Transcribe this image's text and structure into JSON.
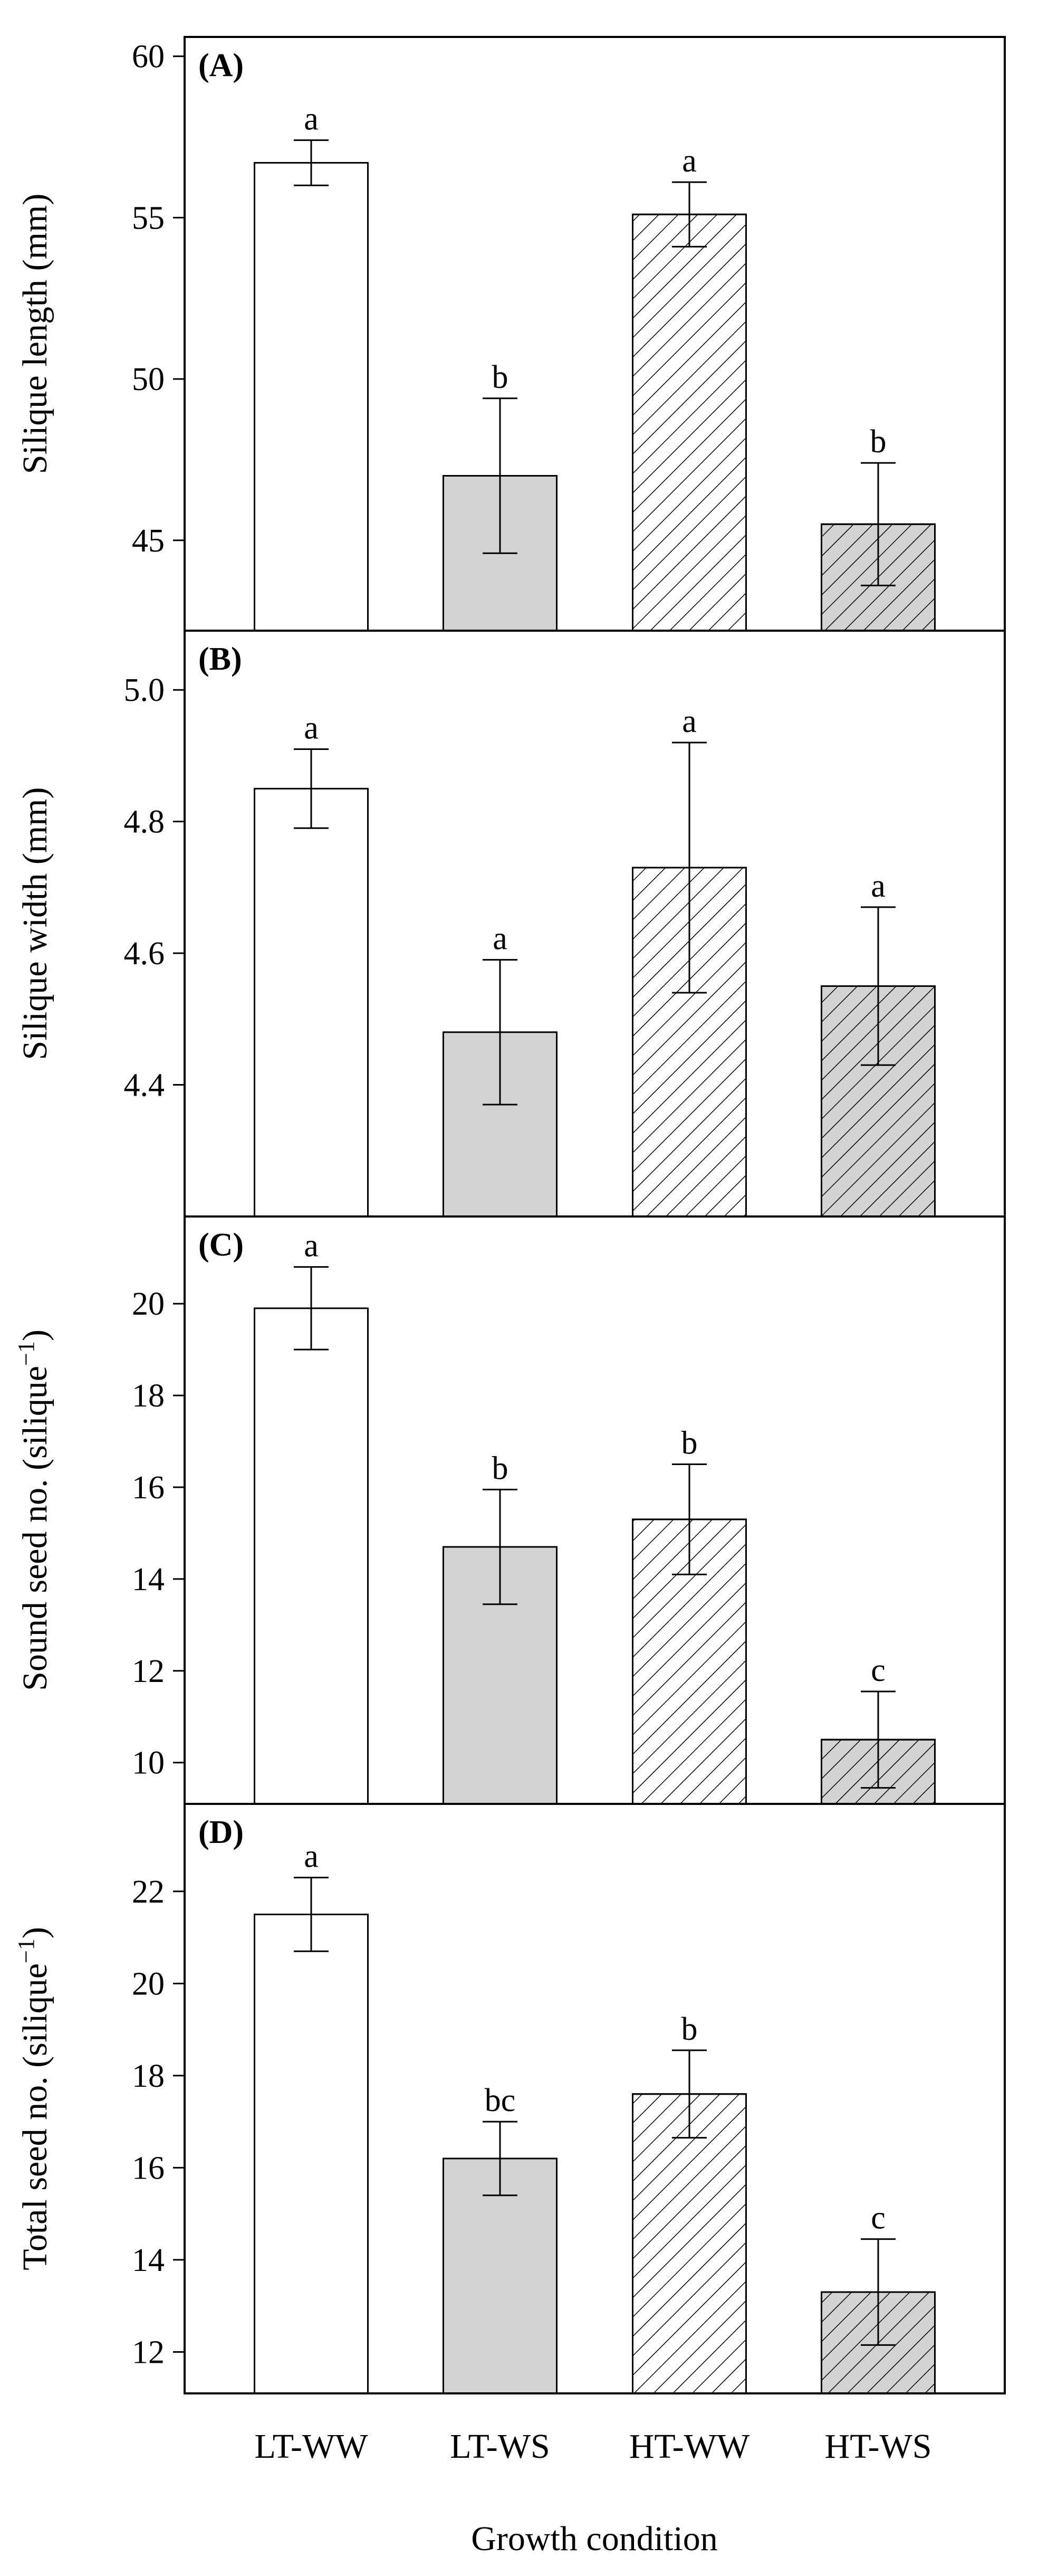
{
  "figure": {
    "xlabel": "Growth condition",
    "categories": [
      "LT-WW",
      "LT-WS",
      "HT-WW",
      "HT-WS"
    ]
  },
  "styles": {
    "bar_fill_open": "#ffffff",
    "bar_fill_shaded": "#d3d3d3",
    "hatch_color": "#000000"
  },
  "chart_data": [
    {
      "type": "bar",
      "panel_label": "(A)",
      "ylabel": "Silique length (mm)",
      "ylabel_superscript": "",
      "ylabel_tail": "",
      "ylim": [
        42.2,
        60.6
      ],
      "yticks": [
        45,
        50,
        55,
        60
      ],
      "tick_labels": [
        "45",
        "50",
        "55",
        "60"
      ],
      "categories": [
        "LT-WW",
        "LT-WS",
        "HT-WW",
        "HT-WS"
      ],
      "values": [
        56.7,
        47.0,
        55.1,
        45.5
      ],
      "errors": [
        0.7,
        2.4,
        1.0,
        1.9
      ],
      "letters": [
        "a",
        "b",
        "a",
        "b"
      ]
    },
    {
      "type": "bar",
      "panel_label": "(B)",
      "ylabel": "Silique width (mm)",
      "ylabel_superscript": "",
      "ylabel_tail": "",
      "ylim": [
        4.2,
        5.09
      ],
      "yticks": [
        4.4,
        4.6,
        4.8,
        5.0
      ],
      "tick_labels": [
        "4.4",
        "4.6",
        "4.8",
        "5.0"
      ],
      "categories": [
        "LT-WW",
        "LT-WS",
        "HT-WW",
        "HT-WS"
      ],
      "values": [
        4.85,
        4.48,
        4.73,
        4.55
      ],
      "errors": [
        0.06,
        0.11,
        0.19,
        0.12
      ],
      "letters": [
        "a",
        "a",
        "a",
        "a"
      ]
    },
    {
      "type": "bar",
      "panel_label": "(C)",
      "ylabel": "Sound seed no. (silique",
      "ylabel_superscript": "−1",
      "ylabel_tail": ")",
      "ylim": [
        9.1,
        21.9
      ],
      "yticks": [
        10,
        12,
        14,
        16,
        18,
        20
      ],
      "tick_labels": [
        "10",
        "12",
        "14",
        "16",
        "18",
        "20"
      ],
      "categories": [
        "LT-WW",
        "LT-WS",
        "HT-WW",
        "HT-WS"
      ],
      "values": [
        19.9,
        14.7,
        15.3,
        10.5
      ],
      "errors": [
        0.9,
        1.25,
        1.2,
        1.05
      ],
      "letters": [
        "a",
        "b",
        "b",
        "c"
      ]
    },
    {
      "type": "bar",
      "panel_label": "(D)",
      "ylabel": "Total seed no. (silique",
      "ylabel_superscript": "−1",
      "ylabel_tail": ")",
      "ylim": [
        11.1,
        23.9
      ],
      "yticks": [
        12,
        14,
        16,
        18,
        20,
        22
      ],
      "tick_labels": [
        "12",
        "14",
        "16",
        "18",
        "20",
        "22"
      ],
      "categories": [
        "LT-WW",
        "LT-WS",
        "HT-WW",
        "HT-WS"
      ],
      "values": [
        21.5,
        16.2,
        17.6,
        13.3
      ],
      "errors": [
        0.8,
        0.8,
        0.95,
        1.15
      ],
      "letters": [
        "a",
        "bc",
        "b",
        "c"
      ]
    }
  ]
}
